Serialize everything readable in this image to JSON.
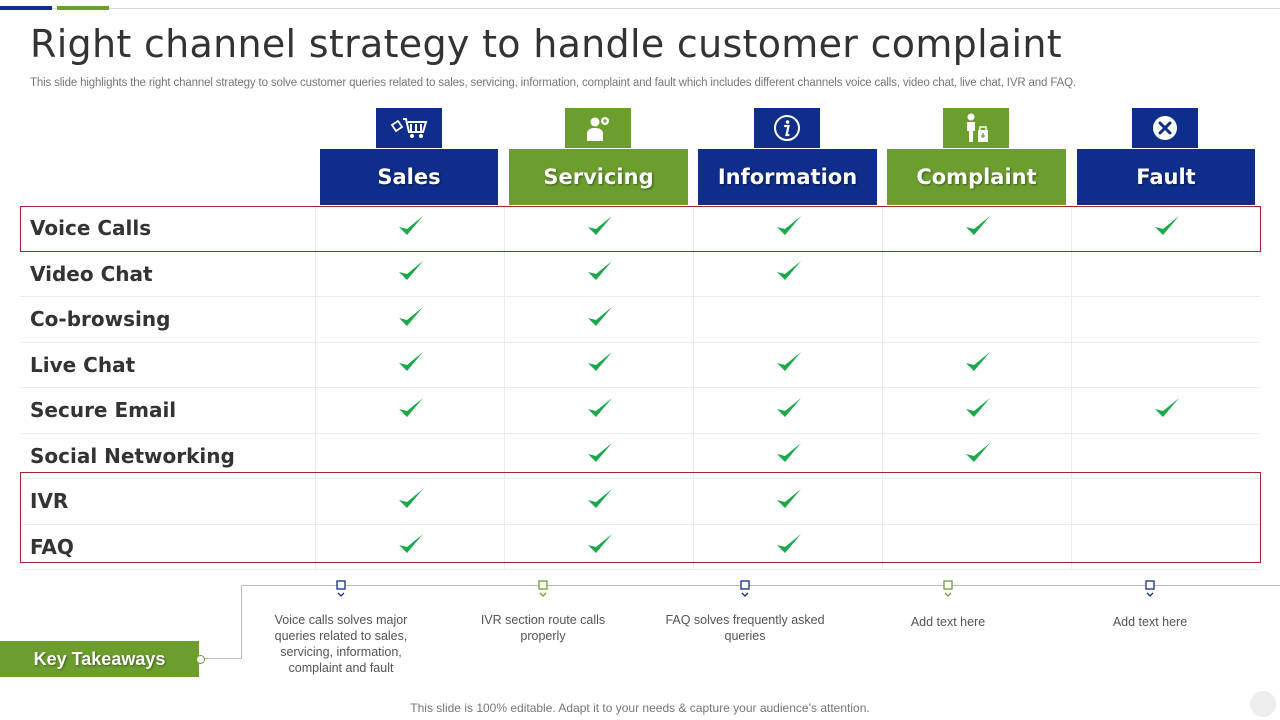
{
  "title": "Right channel strategy to handle customer complaint",
  "subtitle": "This slide highlights the right channel strategy to solve customer queries related to sales, servicing, information, complaint and fault which includes different channels voice calls, video chat,  live chat, IVR  and FAQ.",
  "colors": {
    "blue": "#0f2d8a",
    "green": "#6c9e2e",
    "check": "#1aa84a",
    "highlight": "#a8242a"
  },
  "columns": [
    {
      "label": "Sales",
      "icon": "shopping-cart-icon",
      "color": "blue"
    },
    {
      "label": "Servicing",
      "icon": "customer-service-icon",
      "color": "green"
    },
    {
      "label": "Information",
      "icon": "info-icon",
      "color": "blue"
    },
    {
      "label": "Complaint",
      "icon": "person-complaint-icon",
      "color": "green"
    },
    {
      "label": "Fault",
      "icon": "close-circle-icon",
      "color": "blue"
    }
  ],
  "rows": [
    {
      "label": "Voice Calls",
      "checks": [
        true,
        true,
        true,
        true,
        true
      ]
    },
    {
      "label": "Video Chat",
      "checks": [
        true,
        true,
        true,
        false,
        false
      ]
    },
    {
      "label": "Co-browsing",
      "checks": [
        true,
        true,
        false,
        false,
        false
      ]
    },
    {
      "label": "Live Chat",
      "checks": [
        true,
        true,
        true,
        true,
        false
      ]
    },
    {
      "label": "Secure Email",
      "checks": [
        true,
        true,
        true,
        true,
        true
      ]
    },
    {
      "label": "Social Networking",
      "checks": [
        false,
        true,
        true,
        true,
        false
      ]
    },
    {
      "label": "IVR",
      "checks": [
        true,
        true,
        true,
        false,
        false
      ]
    },
    {
      "label": "FAQ",
      "checks": [
        true,
        true,
        true,
        false,
        false
      ]
    }
  ],
  "key_takeaways": {
    "label": "Key Takeaways",
    "items": [
      {
        "text": "Voice calls solves major queries related to sales, servicing,  information, complaint and fault",
        "color": "blue"
      },
      {
        "text": "IVR section route calls properly",
        "color": "green"
      },
      {
        "text": "FAQ solves frequently asked queries",
        "color": "blue"
      },
      {
        "text": "Add text here",
        "color": "green"
      },
      {
        "text": "Add text here",
        "color": "blue"
      }
    ]
  },
  "footer": "This slide is 100% editable. Adapt it to your needs & capture your audience’s attention."
}
